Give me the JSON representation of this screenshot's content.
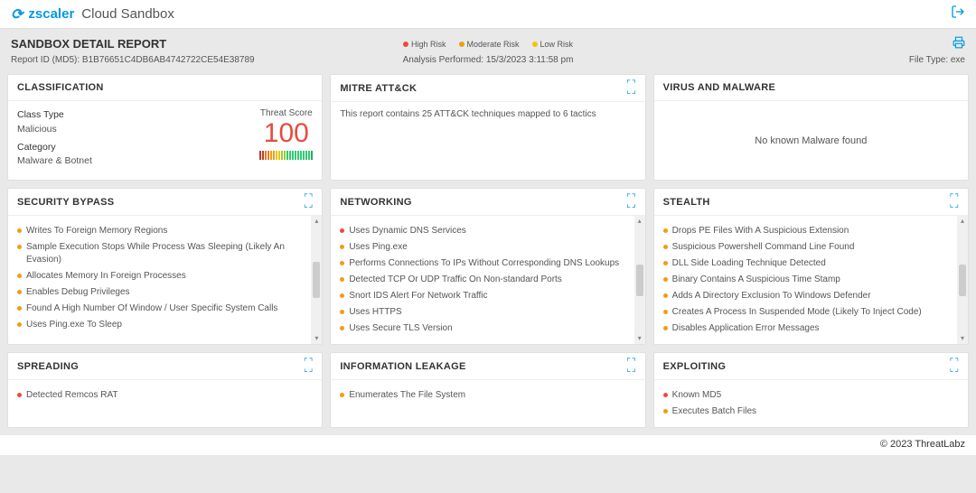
{
  "brand": {
    "mark": "⟳",
    "name": "zscaler",
    "product": "Cloud Sandbox"
  },
  "header": {
    "title": "SANDBOX DETAIL REPORT",
    "report_id_label": "Report ID (MD5):",
    "report_id": "B1B76651C4DB6AB4742722CE54E38789",
    "analysis_label": "Analysis Performed:",
    "analysis_time": "15/3/2023 3:11:58 pm",
    "file_type_label": "File Type:",
    "file_type": "exe"
  },
  "risk_legend": [
    {
      "label": "High Risk",
      "color": "#e74c3c"
    },
    {
      "label": "Moderate Risk",
      "color": "#f39c12"
    },
    {
      "label": "Low Risk",
      "color": "#f1c40f"
    }
  ],
  "classification": {
    "title": "CLASSIFICATION",
    "class_type_label": "Class Type",
    "class_type": "Malicious",
    "category_label": "Category",
    "category": "Malware & Botnet",
    "threat_label": "Threat Score",
    "threat_score": "100",
    "gauge_colors": [
      "#c0392b",
      "#c0392b",
      "#e67e22",
      "#e67e22",
      "#f39c12",
      "#f39c12",
      "#f1c40f",
      "#f1c40f",
      "#9acd32",
      "#9acd32",
      "#2ecc71",
      "#2ecc71",
      "#2ecc71",
      "#2ecc71",
      "#2ecc71",
      "#2ecc71",
      "#2ecc71",
      "#2ecc71",
      "#2ecc71",
      "#27ae60"
    ]
  },
  "mitre": {
    "title": "MITRE ATT&CK",
    "text": "This report contains 25 ATT&CK techniques mapped to 6 tactics"
  },
  "malware": {
    "title": "VIRUS AND MALWARE",
    "text": "No known Malware found"
  },
  "security_bypass": {
    "title": "SECURITY BYPASS",
    "items": [
      {
        "text": "Writes To Foreign Memory Regions",
        "risk": "moderate"
      },
      {
        "text": "Sample Execution Stops While Process Was Sleeping (Likely An Evasion)",
        "risk": "moderate"
      },
      {
        "text": "Allocates Memory In Foreign Processes",
        "risk": "moderate"
      },
      {
        "text": "Enables Debug Privileges",
        "risk": "moderate"
      },
      {
        "text": "Found A High Number Of Window / User Specific System Calls",
        "risk": "moderate"
      },
      {
        "text": "Uses Ping.exe To Sleep",
        "risk": "moderate"
      }
    ]
  },
  "networking": {
    "title": "NETWORKING",
    "items": [
      {
        "text": "Uses Dynamic DNS Services",
        "risk": "high"
      },
      {
        "text": "Uses Ping.exe",
        "risk": "moderate"
      },
      {
        "text": "Performs Connections To IPs Without Corresponding DNS Lookups",
        "risk": "moderate"
      },
      {
        "text": "Detected TCP Or UDP Traffic On Non-standard Ports",
        "risk": "moderate"
      },
      {
        "text": "Snort IDS Alert For Network Traffic",
        "risk": "moderate"
      },
      {
        "text": "Uses HTTPS",
        "risk": "moderate"
      },
      {
        "text": "Uses Secure TLS Version",
        "risk": "moderate"
      }
    ]
  },
  "stealth": {
    "title": "STEALTH",
    "items": [
      {
        "text": "Drops PE Files With A Suspicious Extension",
        "risk": "moderate"
      },
      {
        "text": "Suspicious Powershell Command Line Found",
        "risk": "moderate"
      },
      {
        "text": "DLL Side Loading Technique Detected",
        "risk": "moderate"
      },
      {
        "text": "Binary Contains A Suspicious Time Stamp",
        "risk": "moderate"
      },
      {
        "text": "Adds A Directory Exclusion To Windows Defender",
        "risk": "moderate"
      },
      {
        "text": "Creates A Process In Suspended Mode (Likely To Inject Code)",
        "risk": "moderate"
      },
      {
        "text": "Disables Application Error Messages",
        "risk": "moderate"
      }
    ]
  },
  "spreading": {
    "title": "SPREADING",
    "items": [
      {
        "text": "Detected Remcos RAT",
        "risk": "high"
      }
    ]
  },
  "info_leakage": {
    "title": "INFORMATION LEAKAGE",
    "items": [
      {
        "text": "Enumerates The File System",
        "risk": "moderate"
      }
    ]
  },
  "exploiting": {
    "title": "EXPLOITING",
    "items": [
      {
        "text": "Known MD5",
        "risk": "high"
      },
      {
        "text": "Executes Batch Files",
        "risk": "moderate"
      }
    ]
  },
  "colors": {
    "high": "#e74c3c",
    "moderate": "#f39c12",
    "low": "#f1c40f"
  },
  "footer": "© 2023 ThreatLabz"
}
